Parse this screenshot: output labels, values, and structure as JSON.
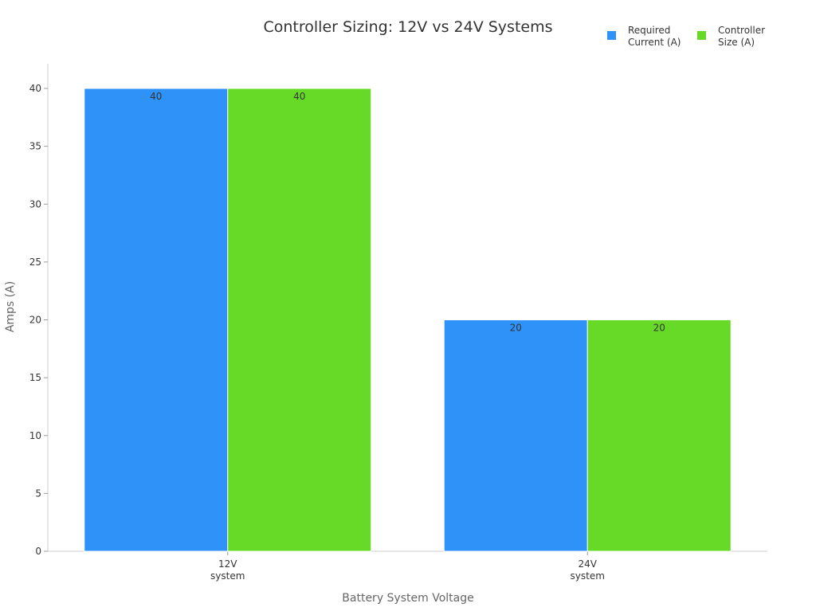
{
  "chart_data": {
    "type": "bar",
    "title": "Controller Sizing: 12V vs 24V Systems",
    "xlabel": "Battery System Voltage",
    "ylabel": "Amps (A)",
    "categories": [
      [
        "12V",
        "system"
      ],
      [
        "24V",
        "system"
      ]
    ],
    "series": [
      {
        "name": [
          "Required",
          "Current (A)"
        ],
        "color": "#2f92f8",
        "values": [
          40,
          20
        ]
      },
      {
        "name": [
          "Controller",
          "Size (A)"
        ],
        "color": "#66da26",
        "values": [
          40,
          20
        ]
      }
    ],
    "ylim": [
      0,
      40
    ],
    "yticks": [
      0,
      5,
      10,
      15,
      20,
      25,
      30,
      35,
      40
    ],
    "grid": false,
    "legend": "top-right",
    "data_labels": true
  }
}
